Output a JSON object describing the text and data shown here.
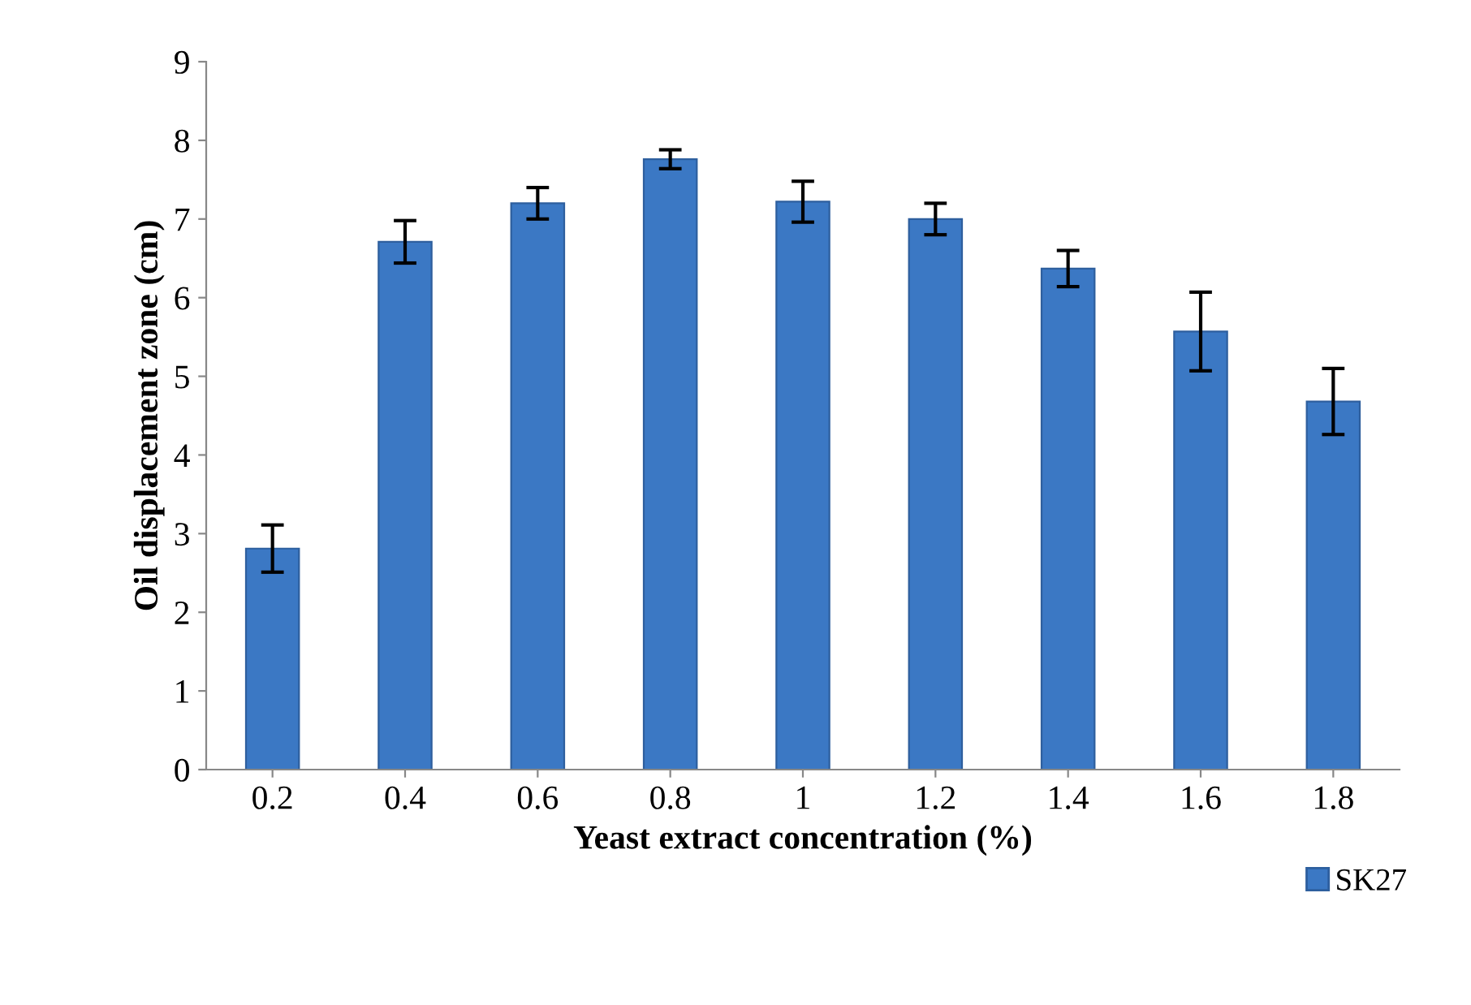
{
  "chart_data": {
    "type": "bar",
    "xlabel": "Yeast extract concentration (%)",
    "ylabel": "Oil displacement zone (cm)",
    "categories": [
      "0.2",
      "0.4",
      "0.6",
      "0.8",
      "1",
      "1.2",
      "1.4",
      "1.6",
      "1.8"
    ],
    "series": [
      {
        "name": "SK27",
        "color": "#3b78c4",
        "values": [
          2.81,
          6.71,
          7.2,
          7.76,
          7.22,
          7.0,
          6.37,
          5.57,
          4.68
        ],
        "errors": [
          0.3,
          0.27,
          0.2,
          0.12,
          0.26,
          0.2,
          0.23,
          0.5,
          0.42
        ]
      }
    ],
    "ylim": [
      0,
      9
    ],
    "yticks": [
      0,
      1,
      2,
      3,
      4,
      5,
      6,
      7,
      8,
      9
    ],
    "grid": false,
    "legend": "bottom right"
  }
}
